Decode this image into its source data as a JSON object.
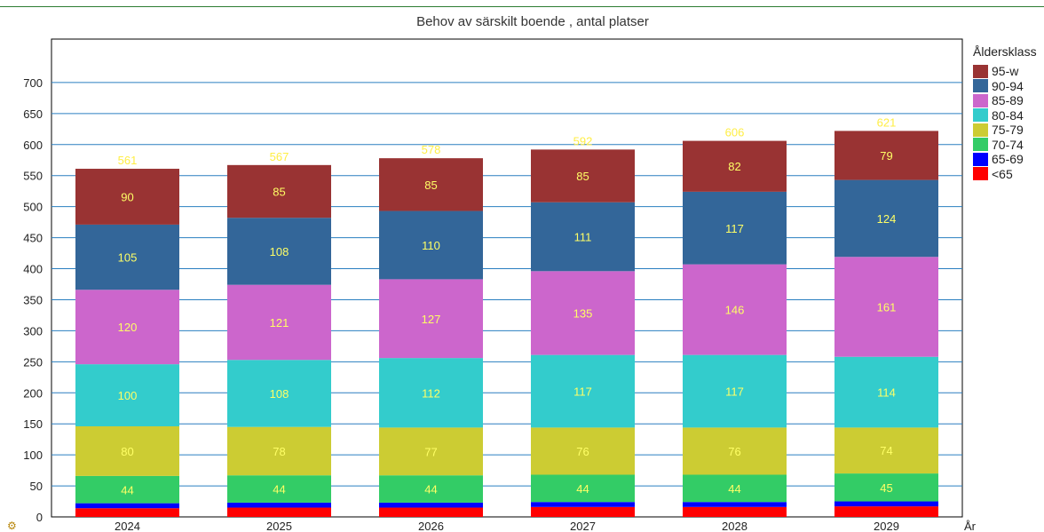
{
  "chart_data": {
    "type": "bar",
    "stacked": true,
    "title": "Behov av särskilt boende , antal platser",
    "xlabel": "År",
    "ylabel": "",
    "ylim": [
      0,
      770
    ],
    "yticks": [
      0,
      50,
      100,
      150,
      200,
      250,
      300,
      350,
      400,
      450,
      500,
      550,
      600,
      650,
      700
    ],
    "grid": true,
    "legend_title": "Åldersklass",
    "legend_position": "right",
    "categories": [
      "2024",
      "2025",
      "2026",
      "2027",
      "2028",
      "2029"
    ],
    "totals": [
      561,
      567,
      578,
      592,
      606,
      621
    ],
    "series": [
      {
        "name": "<65",
        "color": "#ff0000",
        "values": [
          14,
          15,
          15,
          16,
          16,
          17
        ],
        "labels": [
          "",
          "",
          "",
          "",
          "",
          ""
        ]
      },
      {
        "name": "65-69",
        "color": "#0000ff",
        "values": [
          8,
          8,
          8,
          8,
          8,
          8
        ],
        "labels": [
          "",
          "",
          "",
          "",
          "",
          ""
        ]
      },
      {
        "name": "70-74",
        "color": "#33cc66",
        "values": [
          44,
          44,
          44,
          44,
          44,
          45
        ],
        "labels": [
          "44",
          "44",
          "44",
          "44",
          "44",
          "45"
        ]
      },
      {
        "name": "75-79",
        "color": "#cccc33",
        "values": [
          80,
          78,
          77,
          76,
          76,
          74
        ],
        "labels": [
          "80",
          "78",
          "77",
          "76",
          "76",
          "74"
        ]
      },
      {
        "name": "80-84",
        "color": "#33cccc",
        "values": [
          100,
          108,
          112,
          117,
          117,
          114
        ],
        "labels": [
          "100",
          "108",
          "112",
          "117",
          "117",
          "114"
        ]
      },
      {
        "name": "85-89",
        "color": "#cc66cc",
        "values": [
          120,
          121,
          127,
          135,
          146,
          161
        ],
        "labels": [
          "120",
          "121",
          "127",
          "135",
          "146",
          "161"
        ]
      },
      {
        "name": "90-94",
        "color": "#336699",
        "values": [
          105,
          108,
          110,
          111,
          117,
          124
        ],
        "labels": [
          "105",
          "108",
          "110",
          "111",
          "117",
          "124"
        ]
      },
      {
        "name": "95-w",
        "color": "#993333",
        "values": [
          90,
          85,
          85,
          85,
          82,
          79
        ],
        "labels": [
          "90",
          "85",
          "85",
          "85",
          "82",
          "79"
        ]
      }
    ]
  },
  "colors": {
    "gridline": "#2a7fc0",
    "value_label": "#ffff66",
    "total_label": "#ffee44"
  },
  "icons": {
    "corner": "chart-options-icon"
  }
}
